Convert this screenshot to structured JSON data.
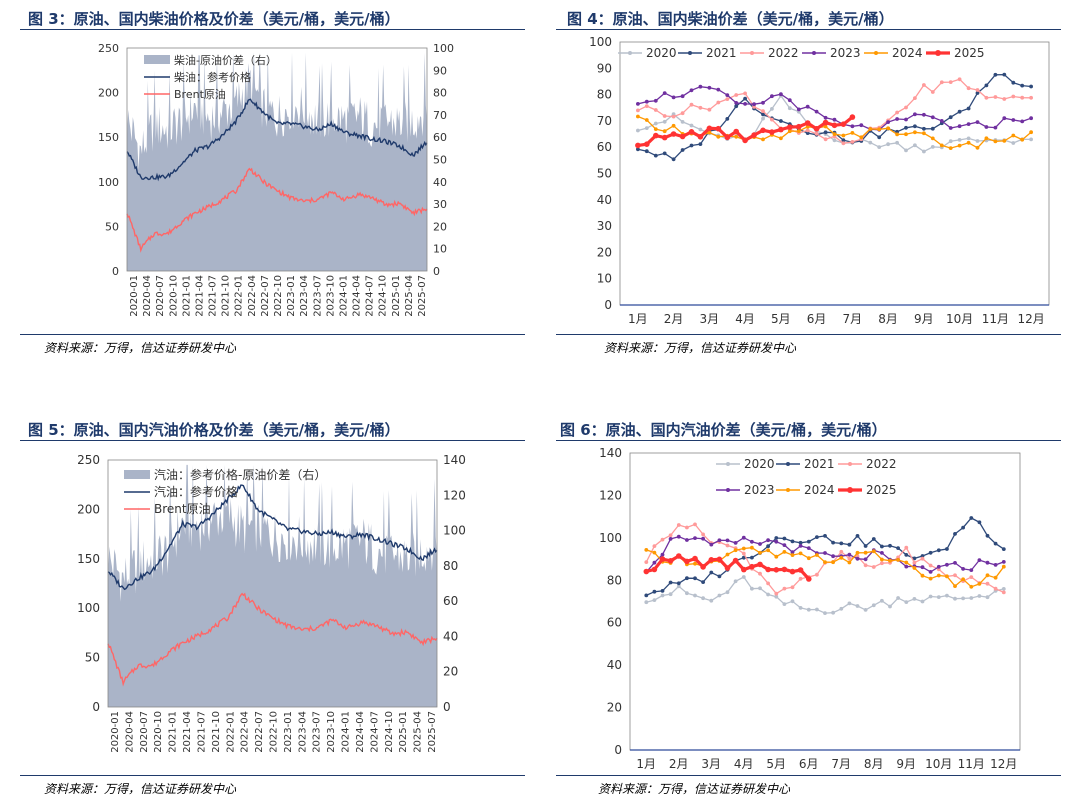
{
  "source": "资料来源：万得，信达证券研发中心",
  "months": [
    "1月",
    "2月",
    "3月",
    "4月",
    "5月",
    "6月",
    "7月",
    "8月",
    "9月",
    "10月",
    "11月",
    "12月"
  ],
  "dates": [
    "2020-01",
    "2020-04",
    "2020-07",
    "2020-10",
    "2021-01",
    "2021-04",
    "2021-07",
    "2021-10",
    "2022-01",
    "2022-04",
    "2022-07",
    "2022-10",
    "2023-01",
    "2023-04",
    "2023-07",
    "2023-10",
    "2024-01",
    "2024-04",
    "2024-07",
    "2024-10",
    "2025-01",
    "2025-04",
    "2025-07"
  ],
  "fig3": {
    "title": "图 3：原油、国内柴油价格及价差（美元/桶，美元/桶）",
    "chart_data": {
      "type": "area",
      "x": [
        "2020-01",
        "2020-04",
        "2020-07",
        "2020-10",
        "2021-01",
        "2021-04",
        "2021-07",
        "2021-10",
        "2022-01",
        "2022-04",
        "2022-07",
        "2022-10",
        "2023-01",
        "2023-04",
        "2023-07",
        "2023-10",
        "2024-01",
        "2024-04",
        "2024-07",
        "2024-10",
        "2025-01",
        "2025-04",
        "2025-07"
      ],
      "ylim": [
        0,
        250
      ],
      "yticks": [
        0,
        50,
        100,
        150,
        200,
        250
      ],
      "y2lim": [
        0,
        100
      ],
      "y2ticks": [
        0,
        10,
        20,
        30,
        40,
        50,
        60,
        70,
        80,
        90,
        100
      ],
      "legend": [
        "柴油-原油价差（右）",
        "柴油：参考价格",
        "Brent原油"
      ],
      "series": [
        {
          "name": "柴油-原油价差（右）",
          "axis": "right",
          "color": "#aab4c8",
          "values": [
            65,
            50,
            62,
            60,
            64,
            70,
            65,
            68,
            72,
            82,
            70,
            66,
            70,
            70,
            64,
            66,
            64,
            66,
            62,
            64,
            63,
            64,
            70
          ]
        },
        {
          "name": "柴油：参考价格",
          "axis": "left",
          "color": "#1f3a6b",
          "values": [
            135,
            105,
            105,
            106,
            120,
            135,
            140,
            152,
            168,
            193,
            178,
            165,
            165,
            162,
            158,
            165,
            155,
            152,
            148,
            145,
            140,
            130,
            145
          ]
        },
        {
          "name": "Brent原油",
          "axis": "left",
          "color": "#ff6666",
          "values": [
            66,
            25,
            42,
            42,
            55,
            65,
            72,
            80,
            90,
            115,
            100,
            90,
            82,
            78,
            80,
            88,
            80,
            86,
            82,
            74,
            76,
            65,
            70
          ]
        }
      ]
    }
  },
  "fig4": {
    "title": "图 4：原油、国内柴油价差（美元/桶，美元/桶）",
    "chart_data": {
      "type": "line",
      "x": [
        "1月",
        "2月",
        "3月",
        "4月",
        "5月",
        "6月",
        "7月",
        "8月",
        "9月",
        "10月",
        "11月",
        "12月"
      ],
      "ylim": [
        0,
        100
      ],
      "yticks": [
        0,
        10,
        20,
        30,
        40,
        50,
        60,
        70,
        80,
        90,
        100
      ],
      "series": [
        {
          "name": "2020",
          "color": "#b8c0cc",
          "values": [
            68,
            71,
            65,
            62,
            78,
            66,
            62,
            61,
            60,
            62,
            63,
            63
          ]
        },
        {
          "name": "2021",
          "color": "#2f4a7a",
          "values": [
            60,
            55,
            65,
            78,
            70,
            66,
            63,
            66,
            67,
            72,
            88,
            84
          ]
        },
        {
          "name": "2022",
          "color": "#ff9a9a",
          "values": [
            75,
            73,
            76,
            80,
            68,
            64,
            61,
            70,
            82,
            85,
            78,
            80
          ]
        },
        {
          "name": "2023",
          "color": "#7030a0",
          "values": [
            78,
            80,
            82,
            75,
            80,
            72,
            67,
            68,
            72,
            67,
            69,
            72
          ]
        },
        {
          "name": "2024",
          "color": "#ff9900",
          "values": [
            70,
            67,
            65,
            62,
            64,
            67,
            65,
            66,
            65,
            59,
            63,
            64
          ]
        },
        {
          "name": "2025",
          "color": "#ff3333",
          "values": [
            62,
            64,
            66,
            64,
            66,
            68,
            71,
            null,
            null,
            null,
            null,
            null
          ]
        }
      ]
    }
  },
  "fig5": {
    "title": "图 5：原油、国内汽油价格及价差（美元/桶，美元/桶）",
    "chart_data": {
      "type": "area",
      "x": [
        "2020-01",
        "2020-04",
        "2020-07",
        "2020-10",
        "2021-01",
        "2021-04",
        "2021-07",
        "2021-10",
        "2022-01",
        "2022-04",
        "2022-07",
        "2022-10",
        "2023-01",
        "2023-04",
        "2023-07",
        "2023-10",
        "2024-01",
        "2024-04",
        "2024-07",
        "2024-10",
        "2025-01",
        "2025-04",
        "2025-07"
      ],
      "ylim": [
        0,
        250
      ],
      "yticks": [
        0,
        50,
        100,
        150,
        200,
        250
      ],
      "y2lim": [
        0,
        140
      ],
      "y2ticks": [
        0,
        20,
        40,
        60,
        80,
        100,
        120,
        140
      ],
      "legend": [
        "汽油：参考价格-原油价差（右）",
        "汽油：参考价格",
        "Brent原油"
      ],
      "series": [
        {
          "name": "汽油：参考价格-原油价差（右）",
          "axis": "right",
          "color": "#aab4c8",
          "values": [
            80,
            68,
            75,
            80,
            84,
            100,
            98,
            103,
            105,
            96,
            98,
            93,
            92,
            90,
            88,
            86,
            88,
            90,
            84,
            82,
            80,
            84,
            90
          ]
        },
        {
          "name": "汽油：参考价格",
          "axis": "left",
          "color": "#1f3a6b",
          "values": [
            138,
            120,
            130,
            138,
            160,
            185,
            182,
            195,
            210,
            225,
            200,
            190,
            180,
            178,
            175,
            177,
            172,
            175,
            170,
            165,
            160,
            150,
            160
          ]
        },
        {
          "name": "Brent原油",
          "axis": "left",
          "color": "#ff6666",
          "values": [
            66,
            25,
            42,
            42,
            55,
            65,
            72,
            80,
            90,
            115,
            100,
            90,
            82,
            78,
            80,
            88,
            80,
            86,
            82,
            74,
            76,
            65,
            70
          ]
        }
      ]
    }
  },
  "fig6": {
    "title": "图 6：原油、国内汽油价差（美元/桶，美元/桶）",
    "chart_data": {
      "type": "line",
      "x": [
        "1月",
        "2月",
        "3月",
        "4月",
        "5月",
        "6月",
        "7月",
        "8月",
        "9月",
        "10月",
        "11月",
        "12月"
      ],
      "ylim": [
        0,
        140
      ],
      "yticks": [
        0,
        20,
        40,
        60,
        80,
        100,
        120,
        140
      ],
      "series": [
        {
          "name": "2020",
          "color": "#b8c0cc",
          "values": [
            72,
            75,
            70,
            80,
            70,
            66,
            67,
            68,
            72,
            71,
            72,
            76
          ]
        },
        {
          "name": "2021",
          "color": "#2f4a7a",
          "values": [
            74,
            78,
            82,
            90,
            100,
            100,
            99,
            98,
            92,
            92,
            110,
            96
          ]
        },
        {
          "name": "2022",
          "color": "#ff9a9a",
          "values": [
            90,
            108,
            100,
            92,
            75,
            80,
            92,
            86,
            93,
            84,
            80,
            76
          ]
        },
        {
          "name": "2023",
          "color": "#7030a0",
          "values": [
            86,
            102,
            96,
            98,
            98,
            93,
            90,
            92,
            86,
            85,
            87,
            90
          ]
        },
        {
          "name": "2024",
          "color": "#ff9900",
          "values": [
            92,
            90,
            88,
            94,
            92,
            90,
            90,
            92,
            88,
            80,
            78,
            84
          ]
        },
        {
          "name": "2025",
          "color": "#ff3333",
          "values": [
            86,
            90,
            88,
            87,
            84,
            82,
            null,
            null,
            null,
            null,
            null,
            null
          ]
        }
      ]
    }
  }
}
